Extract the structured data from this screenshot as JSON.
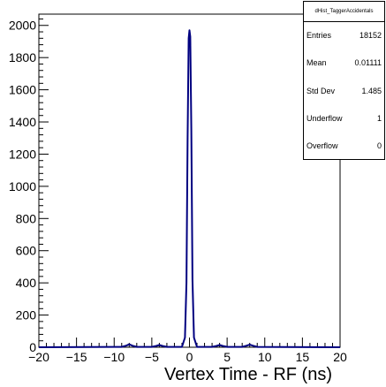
{
  "chart_data": {
    "type": "line",
    "title": "",
    "xlabel": "Vertex Time - RF (ns)",
    "ylabel": "",
    "xlim": [
      -20,
      20
    ],
    "ylim": [
      0,
      2070
    ],
    "xticks": [
      -20,
      -15,
      -10,
      -5,
      0,
      5,
      10,
      15,
      20
    ],
    "yticks": [
      0,
      200,
      400,
      600,
      800,
      1000,
      1200,
      1400,
      1600,
      1800,
      2000
    ],
    "line_color": "#000080",
    "series": [
      {
        "points": [
          [
            -20,
            0
          ],
          [
            -9,
            2
          ],
          [
            -8.4,
            10
          ],
          [
            -8,
            18
          ],
          [
            -7.6,
            10
          ],
          [
            -7,
            2
          ],
          [
            -5,
            2
          ],
          [
            -4.4,
            8
          ],
          [
            -4,
            14
          ],
          [
            -3.6,
            8
          ],
          [
            -3,
            2
          ],
          [
            -1,
            2
          ],
          [
            -0.6,
            60
          ],
          [
            -0.4,
            400
          ],
          [
            -0.25,
            1300
          ],
          [
            -0.1,
            1920
          ],
          [
            0,
            1970
          ],
          [
            0.1,
            1930
          ],
          [
            0.25,
            1350
          ],
          [
            0.4,
            420
          ],
          [
            0.6,
            60
          ],
          [
            1,
            2
          ],
          [
            3,
            2
          ],
          [
            3.6,
            8
          ],
          [
            4,
            14
          ],
          [
            4.4,
            8
          ],
          [
            5,
            2
          ],
          [
            7,
            2
          ],
          [
            7.6,
            10
          ],
          [
            8,
            16
          ],
          [
            8.4,
            10
          ],
          [
            9,
            2
          ],
          [
            20,
            0
          ]
        ]
      }
    ]
  },
  "stats": {
    "title": "dHist_TaggerAccidentals",
    "rows": [
      {
        "label": "Entries",
        "value": "18152"
      },
      {
        "label": "Mean",
        "value": "0.01111"
      },
      {
        "label": "Std Dev",
        "value": "1.485"
      },
      {
        "label": "Underflow",
        "value": "1"
      },
      {
        "label": "Overflow",
        "value": "0"
      }
    ]
  }
}
